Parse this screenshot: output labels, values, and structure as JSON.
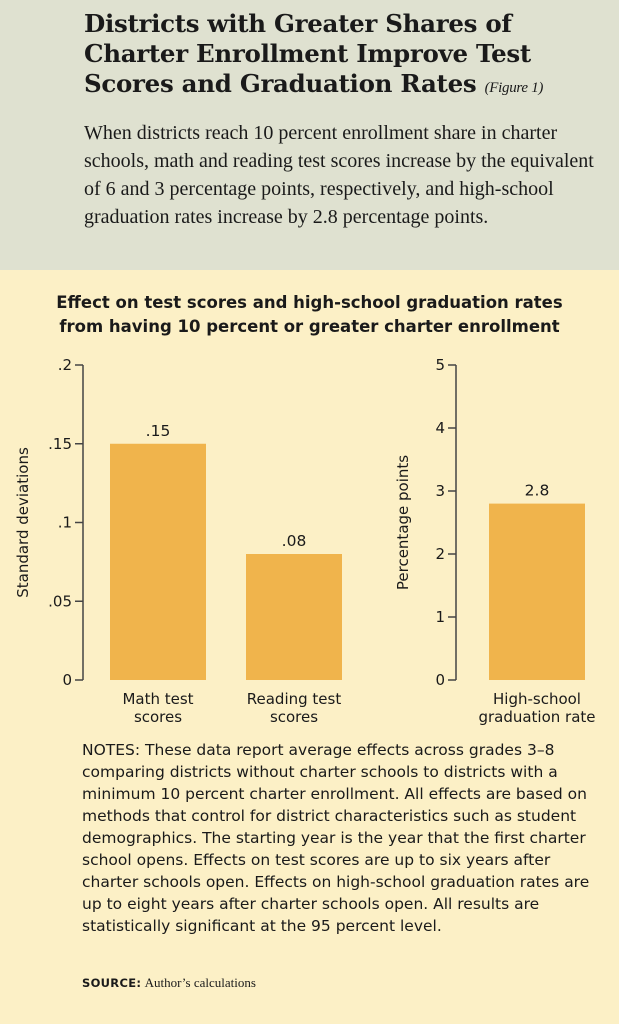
{
  "header": {
    "title": "Districts with Greater Shares of Charter Enrollment Improve Test Scores and Graduation Rates",
    "figure_ref": "(Figure 1)",
    "subtitle": "When districts reach 10 percent enrollment share in charter schools, math and reading test scores increase by the equivalent of 6 and 3 percentage points, respectively, and high-school graduation rates increase by 2.8 percentage points."
  },
  "chart_title_line1": "Effect on test scores and high-school graduation rates",
  "chart_title_line2": "from having 10 percent or greater charter enrollment",
  "colors": {
    "bar": "#f0b44c",
    "axis": "#444444",
    "header_bg": "#dfe1d0",
    "page_bg": "#fcf0c6"
  },
  "chart_data": [
    {
      "type": "bar",
      "categories": [
        [
          "Math test",
          "scores"
        ],
        [
          "Reading test",
          "scores"
        ]
      ],
      "values": [
        0.15,
        0.08
      ],
      "data_labels": [
        ".15",
        ".08"
      ],
      "ylabel": "Standard deviations",
      "ylim": [
        0,
        0.2
      ],
      "yticks": [
        0,
        0.05,
        0.1,
        0.15,
        0.2
      ],
      "ytick_labels": [
        "0",
        ".05",
        ".1",
        ".15",
        ".2"
      ],
      "grid": false
    },
    {
      "type": "bar",
      "categories": [
        [
          "High-school",
          "graduation rate"
        ]
      ],
      "values": [
        2.8
      ],
      "data_labels": [
        "2.8"
      ],
      "ylabel": "Percentage points",
      "ylim": [
        0,
        5
      ],
      "yticks": [
        0,
        1,
        2,
        3,
        4,
        5
      ],
      "ytick_labels": [
        "0",
        "1",
        "2",
        "3",
        "4",
        "5"
      ],
      "grid": false
    }
  ],
  "notes": "NOTES: These data report average effects across grades 3–8 comparing districts without charter schools to districts with a minimum 10 percent charter enrollment. All effects are based on methods that control for district characteristics such as student demographics. The starting year is the year that the first charter school opens. Effects on test scores are up to six years after charter schools open. Effects on high-school graduation rates are up to eight years after charter schools open. All results are statistically significant at the 95 percent level.",
  "source": {
    "label": "SOURCE:",
    "text": "Author’s calculations"
  }
}
